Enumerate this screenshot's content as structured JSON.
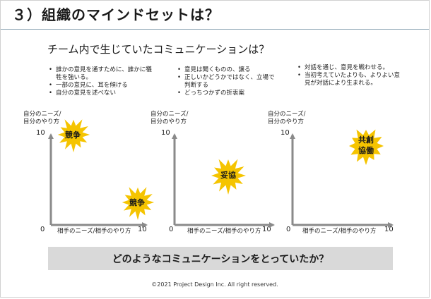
{
  "title": "３）組織のマインドセットは？",
  "subtitle": "チーム内で生じていたコミュニケーションは？",
  "panels": [
    {
      "bullets": [
        "誰かの意見を通すために、誰かに犠牲を強いる。",
        "一部の意見に、耳を傾ける",
        "自分の意見を述べない"
      ],
      "y_label_line1": "自分のニーズ/",
      "y_label_line2": "目分のやり方",
      "y_max": "10",
      "origin": "0",
      "x_label": "相手のニーズ/相手のやり方",
      "x_max": "10",
      "stars": [
        {
          "label": "競争"
        },
        {
          "label": "競争"
        }
      ]
    },
    {
      "bullets": [
        "意見は聞くものの、譲る",
        "正しいかどうかではなく、立場で判断する",
        "どっちつかずの折衷案"
      ],
      "y_label_line1": "自分のニーズ/",
      "y_label_line2": "目分のやり方",
      "y_max": "10",
      "origin": "0",
      "x_label": "相手のニーズ/相手のやり方",
      "x_max": "10",
      "stars": [
        {
          "label": "妥協"
        }
      ]
    },
    {
      "bullets": [
        "対話を通じ、意見を戦わせる。",
        "当初考えていたよりも、よりよい意見が対話により生まれる。"
      ],
      "y_label_line1": "自分のニーズ/",
      "y_label_line2": "目分のやり方",
      "y_max": "10",
      "origin": "0",
      "x_label": "相手のニーズ/相手のやり方",
      "x_max": "10",
      "stars": [
        {
          "label_line1": "共創",
          "label_line2": "協働"
        }
      ]
    }
  ],
  "question": "どのようなコミュニケーションをとっていたか？",
  "footer": "©2021  Project Design Inc.  All right reserved.",
  "colors": {
    "star_fill": "#f5c400",
    "axis": "#8a8a8a",
    "rule": "#8fa7b6",
    "question_bg": "#d9d9d9"
  }
}
